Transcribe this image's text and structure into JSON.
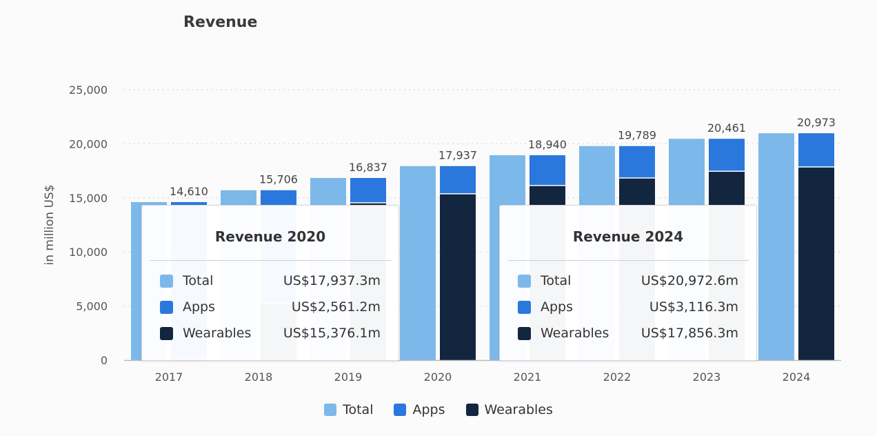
{
  "title": "Revenue",
  "colors": {
    "total": "#7cb9ea",
    "apps": "#2a78de",
    "wearables": "#12263f",
    "grid": "#dddddd",
    "axis": "#bbbbbb"
  },
  "chart_data": {
    "type": "bar",
    "title": "Revenue",
    "xlabel": "",
    "ylabel": "in million US$",
    "ylim": [
      0,
      25000
    ],
    "yticks": [
      0,
      5000,
      10000,
      15000,
      20000,
      25000
    ],
    "ytick_labels": [
      "0",
      "5,000",
      "10,000",
      "15,000",
      "20,000",
      "25,000"
    ],
    "grid": true,
    "legend_position": "bottom",
    "categories": [
      "2017",
      "2018",
      "2019",
      "2020",
      "2021",
      "2022",
      "2023",
      "2024"
    ],
    "series": [
      {
        "name": "Total",
        "values": [
          14610,
          15706,
          16837,
          17937,
          18940,
          19789,
          20461,
          20973
        ]
      },
      {
        "name": "Apps",
        "values": [
          14460,
          10450,
          2300,
          2561.2,
          2800,
          2950,
          3000,
          3116.3
        ],
        "stacked": true
      },
      {
        "name": "Wearables",
        "values": [
          150,
          5256,
          14537,
          15376.1,
          16140,
          16839,
          17461,
          17856.3
        ],
        "stacked": true
      }
    ],
    "data_labels": [
      "14,610",
      "15,706",
      "16,837",
      "17,937",
      "18,940",
      "19,789",
      "20,461",
      "20,973"
    ]
  },
  "tooltips": [
    {
      "title": "Revenue 2020",
      "rows": [
        {
          "name": "Total",
          "value": "US$17,937.3m"
        },
        {
          "name": "Apps",
          "value": "US$2,561.2m"
        },
        {
          "name": "Wearables",
          "value": "US$15,376.1m"
        }
      ]
    },
    {
      "title": "Revenue 2024",
      "rows": [
        {
          "name": "Total",
          "value": "US$20,972.6m"
        },
        {
          "name": "Apps",
          "value": "US$3,116.3m"
        },
        {
          "name": "Wearables",
          "value": "US$17,856.3m"
        }
      ]
    }
  ],
  "legend": [
    "Total",
    "Apps",
    "Wearables"
  ]
}
